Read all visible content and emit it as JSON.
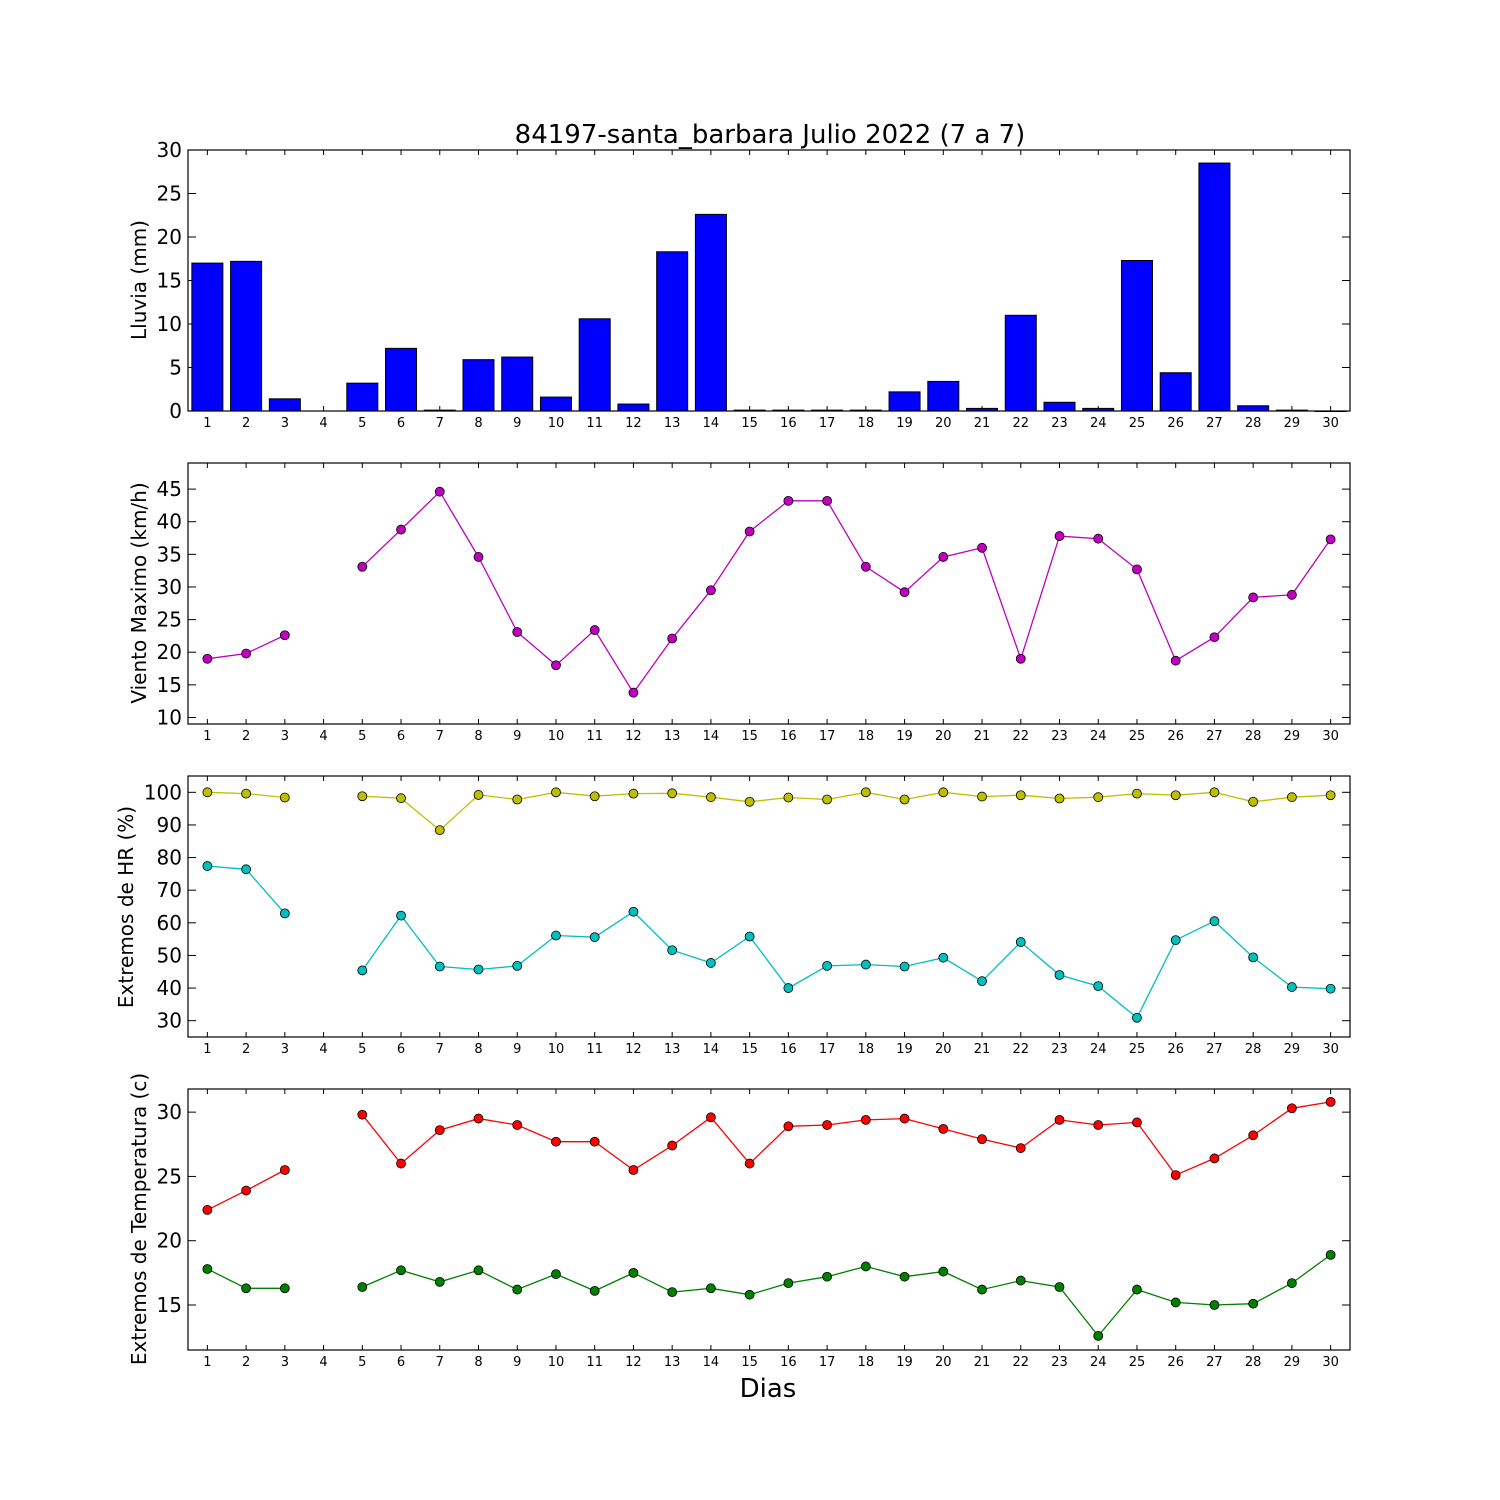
{
  "title": "84197-santa_barbara Julio 2022  (7 a 7)",
  "xlabel": "Dias",
  "colors": {
    "rain": "#0000ff",
    "wind": "#bf00bf",
    "hr_max": "#bfbf00",
    "hr_min": "#00bfbf",
    "temp_max": "#ff0000",
    "temp_min": "#008000"
  },
  "chart_data": [
    {
      "type": "bar",
      "ylabel": "Lluvia (mm)",
      "x": [
        1,
        2,
        3,
        4,
        5,
        6,
        7,
        8,
        9,
        10,
        11,
        12,
        13,
        14,
        15,
        16,
        17,
        18,
        19,
        20,
        21,
        22,
        23,
        24,
        25,
        26,
        27,
        28,
        29,
        30
      ],
      "values": [
        17.0,
        17.2,
        1.4,
        null,
        3.2,
        7.2,
        0.1,
        5.9,
        6.2,
        1.6,
        10.6,
        0.8,
        18.3,
        22.6,
        0.1,
        0.1,
        0.1,
        0.1,
        2.2,
        3.4,
        0.3,
        11.0,
        1.0,
        0.3,
        17.3,
        4.4,
        28.5,
        0.6,
        0.1,
        0.0
      ],
      "ylim": [
        0,
        30
      ],
      "yticks": [
        0,
        5,
        10,
        15,
        20,
        25,
        30
      ],
      "xticks": [
        1,
        2,
        3,
        4,
        5,
        6,
        7,
        8,
        9,
        10,
        11,
        12,
        13,
        14,
        15,
        16,
        17,
        18,
        19,
        20,
        21,
        22,
        23,
        24,
        25,
        26,
        27,
        28,
        29,
        30
      ]
    },
    {
      "type": "line",
      "ylabel": "Viento Maximo (km/h)",
      "x": [
        1,
        2,
        3,
        4,
        5,
        6,
        7,
        8,
        9,
        10,
        11,
        12,
        13,
        14,
        15,
        16,
        17,
        18,
        19,
        20,
        21,
        22,
        23,
        24,
        25,
        26,
        27,
        28,
        29,
        30
      ],
      "series": [
        {
          "color_key": "wind",
          "values": [
            19.0,
            19.8,
            22.6,
            null,
            33.1,
            38.8,
            44.6,
            34.6,
            23.1,
            18.0,
            23.4,
            13.8,
            22.1,
            29.5,
            38.5,
            43.2,
            43.2,
            33.1,
            29.2,
            34.6,
            36.0,
            19.0,
            37.8,
            37.4,
            32.7,
            18.7,
            22.3,
            28.4,
            28.8,
            37.3
          ]
        }
      ],
      "ylim": [
        9,
        49
      ],
      "yticks": [
        10,
        15,
        20,
        25,
        30,
        35,
        40,
        45
      ],
      "xticks": [
        1,
        2,
        3,
        4,
        5,
        6,
        7,
        8,
        9,
        10,
        11,
        12,
        13,
        14,
        15,
        16,
        17,
        18,
        19,
        20,
        21,
        22,
        23,
        24,
        25,
        26,
        27,
        28,
        29,
        30
      ]
    },
    {
      "type": "line",
      "ylabel": "Extremos de HR (%)",
      "x": [
        1,
        2,
        3,
        4,
        5,
        6,
        7,
        8,
        9,
        10,
        11,
        12,
        13,
        14,
        15,
        16,
        17,
        18,
        19,
        20,
        21,
        22,
        23,
        24,
        25,
        26,
        27,
        28,
        29,
        30
      ],
      "series": [
        {
          "color_key": "hr_max",
          "values": [
            100,
            99.6,
            98.4,
            null,
            98.8,
            98.2,
            88.4,
            99.2,
            97.8,
            100,
            98.8,
            99.6,
            99.7,
            98.5,
            97.1,
            98.4,
            97.8,
            100,
            97.8,
            100,
            98.7,
            99.1,
            98.1,
            98.5,
            99.6,
            99.1,
            100,
            97.1,
            98.5,
            99.1
          ]
        },
        {
          "color_key": "hr_min",
          "values": [
            77.4,
            76.4,
            62.9,
            null,
            45.4,
            62.2,
            46.6,
            45.7,
            46.8,
            56.1,
            55.6,
            63.4,
            51.6,
            47.7,
            55.8,
            40.0,
            46.8,
            47.2,
            46.6,
            49.3,
            42.1,
            54.1,
            44.0,
            40.6,
            30.9,
            54.7,
            60.5,
            49.4,
            40.3,
            39.8
          ]
        }
      ],
      "ylim": [
        25,
        105
      ],
      "yticks": [
        30,
        40,
        50,
        60,
        70,
        80,
        90,
        100
      ],
      "xticks": [
        1,
        2,
        3,
        4,
        5,
        6,
        7,
        8,
        9,
        10,
        11,
        12,
        13,
        14,
        15,
        16,
        17,
        18,
        19,
        20,
        21,
        22,
        23,
        24,
        25,
        26,
        27,
        28,
        29,
        30
      ]
    },
    {
      "type": "line",
      "ylabel": "Extremos de Temperatura (c)",
      "x": [
        1,
        2,
        3,
        4,
        5,
        6,
        7,
        8,
        9,
        10,
        11,
        12,
        13,
        14,
        15,
        16,
        17,
        18,
        19,
        20,
        21,
        22,
        23,
        24,
        25,
        26,
        27,
        28,
        29,
        30
      ],
      "series": [
        {
          "color_key": "temp_max",
          "values": [
            22.4,
            23.9,
            25.5,
            null,
            29.8,
            26.0,
            28.6,
            29.5,
            29.0,
            27.7,
            27.7,
            25.5,
            27.4,
            29.6,
            26.0,
            28.9,
            29.0,
            29.4,
            29.5,
            28.7,
            27.9,
            27.2,
            29.4,
            29.0,
            29.2,
            25.1,
            26.4,
            28.2,
            30.3,
            30.8
          ]
        },
        {
          "color_key": "temp_min",
          "values": [
            17.8,
            16.3,
            16.3,
            null,
            16.4,
            17.7,
            16.8,
            17.7,
            16.2,
            17.4,
            16.1,
            17.5,
            16.0,
            16.3,
            15.8,
            16.7,
            17.2,
            18.0,
            17.2,
            17.6,
            16.2,
            16.9,
            16.4,
            12.6,
            16.2,
            15.2,
            15.0,
            15.1,
            16.7,
            18.9
          ]
        }
      ],
      "ylim": [
        11.5,
        31.8
      ],
      "yticks": [
        15,
        20,
        25,
        30
      ],
      "xticks": [
        1,
        2,
        3,
        4,
        5,
        6,
        7,
        8,
        9,
        10,
        11,
        12,
        13,
        14,
        15,
        16,
        17,
        18,
        19,
        20,
        21,
        22,
        23,
        24,
        25,
        26,
        27,
        28,
        29,
        30
      ]
    }
  ]
}
